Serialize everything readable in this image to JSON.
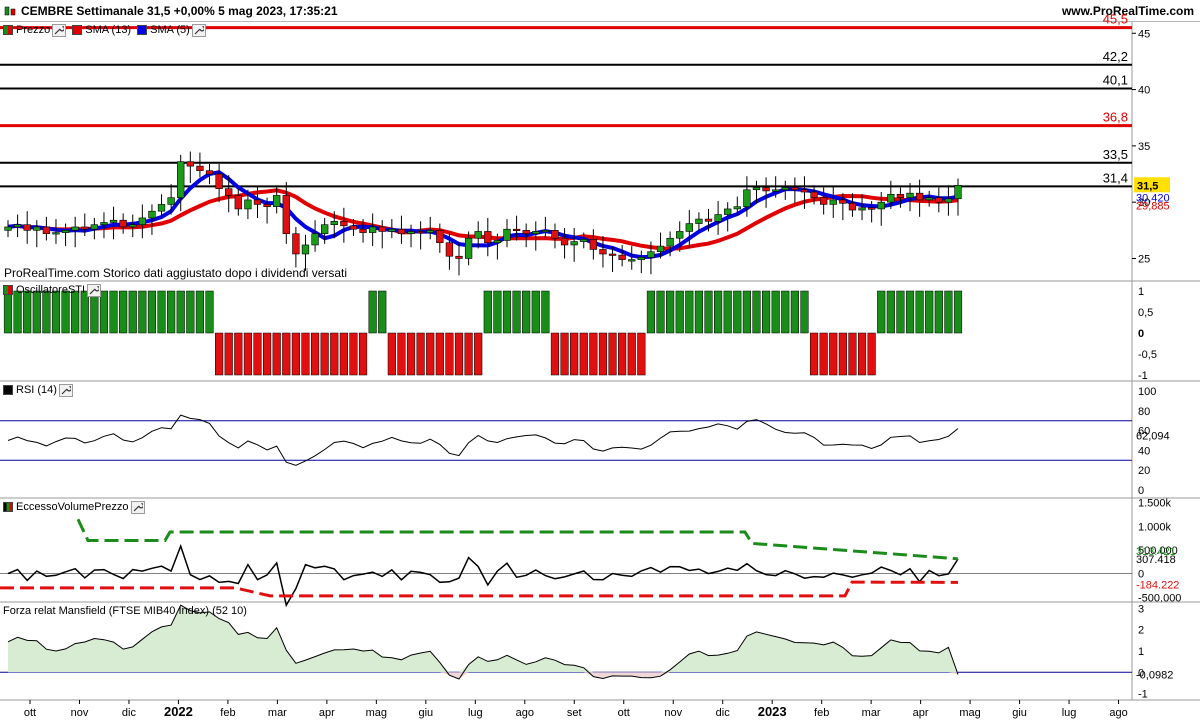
{
  "header": {
    "title": "CEMBRE Settimanale 31,5 +0,00% 5 mag 2023, 17:35:21",
    "site": "www.ProRealTime.com"
  },
  "price_panel": {
    "legend": [
      {
        "label": "Prezzo",
        "color": "#1a8c1a",
        "icon": "candles-icon"
      },
      {
        "label": "SMA (13)",
        "color": "#e00000"
      },
      {
        "label": "SMA (5)",
        "color": "#0000e0"
      }
    ],
    "note": "ProRealTime.com  Storico dati aggiustato dopo i dividendi versati",
    "price_label": "31,5",
    "sma13_label": "29,885",
    "sma5_label": "30,420",
    "axis_ticks": [
      "45",
      "40",
      "35",
      "30",
      "25"
    ],
    "hlines": [
      {
        "label": "45,5",
        "value": 45.5,
        "color": "#e00000"
      },
      {
        "label": "42,2",
        "value": 42.2,
        "color": "#000000"
      },
      {
        "label": "40,1",
        "value": 40.1,
        "color": "#000000"
      },
      {
        "label": "36,8",
        "value": 36.8,
        "color": "#e00000"
      },
      {
        "label": "33,5",
        "value": 33.5,
        "color": "#000000"
      },
      {
        "label": "31,4",
        "value": 31.4,
        "color": "#000000"
      }
    ]
  },
  "sti_panel": {
    "title": "OscillatoreSTI",
    "axis_ticks": [
      "1",
      "0,5",
      "0",
      "-0,5",
      "-1"
    ]
  },
  "rsi_panel": {
    "title": "RSI (14)",
    "value_label": "62,094",
    "axis_ticks": [
      "100",
      "80",
      "60",
      "40",
      "20",
      "0"
    ]
  },
  "evp_panel": {
    "title": "EccessoVolumePrezzo",
    "value_label": "307.418",
    "upper_label": "313.421",
    "lower_label": "-184.222",
    "axis_ticks": [
      "1.500k",
      "1.000k",
      "500.000",
      "0",
      "-500.000"
    ]
  },
  "mansfield_panel": {
    "title": "Forza relat Mansfield (FTSE MIB40 Index) (52 10)",
    "value_label": "-0,0982",
    "axis_ticks": [
      "3",
      "2",
      "1",
      "0",
      "-1"
    ]
  },
  "time_axis": {
    "labels": [
      "ott",
      "nov",
      "dic",
      "2022",
      "feb",
      "mar",
      "apr",
      "mag",
      "giu",
      "lug",
      "ago",
      "set",
      "ott",
      "nov",
      "dic",
      "2023",
      "feb",
      "mar",
      "apr",
      "mag",
      "giu",
      "lug",
      "ago"
    ]
  },
  "chart_data": {
    "type": "candlestick",
    "frequency": "weekly",
    "price": {
      "x": [
        "ott 2021 … mag 2023 (weekly)"
      ],
      "close": [
        27.8,
        28.0,
        27.5,
        27.8,
        27.2,
        27.3,
        27.5,
        27.8,
        27.6,
        28.0,
        28.2,
        28.4,
        27.8,
        28.0,
        28.6,
        29.2,
        29.8,
        30.4,
        33.6,
        33.2,
        32.8,
        32.5,
        31.2,
        30.6,
        29.4,
        30.2,
        29.8,
        29.6,
        30.6,
        27.2,
        25.4,
        26.2,
        27.2,
        28.0,
        28.3,
        27.9,
        27.6,
        27.3,
        27.8,
        27.4,
        27.6,
        27.2,
        27.4,
        27.3,
        27.5,
        26.4,
        25.2,
        25.0,
        26.8,
        27.4,
        26.4,
        26.6,
        27.6,
        27.5,
        27.2,
        27.4,
        27.5,
        26.8,
        26.2,
        26.5,
        26.7,
        25.8,
        25.4,
        25.3,
        24.9,
        24.9,
        25.1,
        25.6,
        26.1,
        26.8,
        27.4,
        28.1,
        28.5,
        28.3,
        28.9,
        29.4,
        29.6,
        31.1,
        31.3,
        31.0,
        31.1,
        31.3,
        31.1,
        30.9,
        30.4,
        29.8,
        30.2,
        29.9,
        29.3,
        29.5,
        29.4,
        30.0,
        30.7,
        30.4,
        30.8,
        30.2,
        30.4,
        30.0,
        30.3,
        31.5
      ],
      "sma13_last": 29.885,
      "sma5_last": 30.42,
      "ylim": [
        23,
        46
      ]
    },
    "sti": {
      "ylim": [
        -1,
        1
      ]
    },
    "rsi": {
      "last": 62.094,
      "ylim": [
        0,
        100
      ],
      "levels": [
        70,
        30
      ]
    },
    "evp": {
      "last": 307418,
      "upper": 313421,
      "lower": -184222
    },
    "mansfield": {
      "last": -0.0982,
      "ylim": [
        -1,
        3
      ]
    }
  }
}
